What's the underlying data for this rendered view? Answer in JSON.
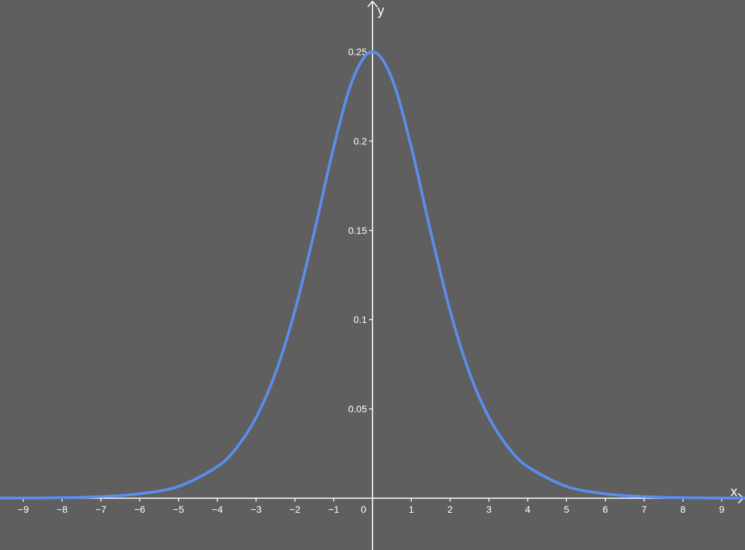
{
  "chart_data": {
    "type": "line",
    "title": "",
    "xlabel": "x",
    "ylabel": "y",
    "xlim": [
      -9.6,
      9.6
    ],
    "ylim": [
      -0.029,
      0.279
    ],
    "x_ticks": [
      -9,
      -8,
      -7,
      -6,
      -5,
      -4,
      -3,
      -2,
      -1,
      0,
      1,
      2,
      3,
      4,
      5,
      6,
      7,
      8,
      9
    ],
    "x_tick_labels": [
      "−9",
      "−8",
      "−7",
      "−6",
      "−5",
      "−4",
      "−3",
      "−2",
      "−1",
      "0",
      "1",
      "2",
      "3",
      "4",
      "5",
      "6",
      "7",
      "8",
      "9"
    ],
    "y_ticks": [
      0.05,
      0.1,
      0.15,
      0.2,
      0.25
    ],
    "y_tick_labels": [
      "0.05",
      "0.1",
      "0.15",
      "0.2",
      "0.25"
    ],
    "grid": false,
    "background_color": "#5f5f5f",
    "axis_color": "#ffffff",
    "series": [
      {
        "color": "#5b8def",
        "x": [
          -9.6,
          -9,
          -8,
          -7,
          -6,
          -5,
          -4,
          -3.5,
          -3,
          -2.5,
          -2,
          -1.5,
          -1,
          -0.5,
          0,
          0.5,
          1,
          1.5,
          2,
          2.5,
          3,
          3.5,
          4,
          5,
          6,
          7,
          8,
          9,
          9.6
        ],
        "y": [
          0.0001,
          0.0001,
          0.0003,
          0.0009,
          0.0025,
          0.0066,
          0.0177,
          0.0284,
          0.0452,
          0.0701,
          0.105,
          0.1491,
          0.1966,
          0.235,
          0.25,
          0.235,
          0.1966,
          0.1491,
          0.105,
          0.0701,
          0.0452,
          0.0284,
          0.0177,
          0.0066,
          0.0025,
          0.0009,
          0.0003,
          0.0001,
          0.0001
        ]
      }
    ]
  }
}
